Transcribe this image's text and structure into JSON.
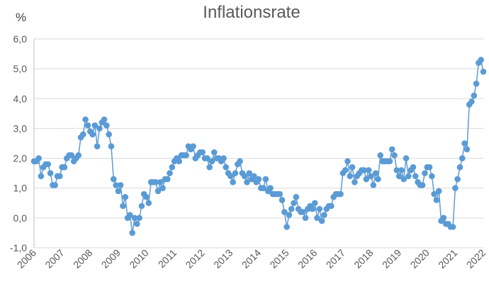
{
  "chart_data": {
    "type": "line",
    "title": "Inflationsrate",
    "unit_label": "%",
    "xlabel": "",
    "ylabel": "",
    "ylim": [
      -1.0,
      6.0
    ],
    "yticks": [
      "6,0",
      "5,0",
      "4,0",
      "3,0",
      "2,0",
      "1,0",
      "0,0",
      "-1,0"
    ],
    "ytick_values": [
      6,
      5,
      4,
      3,
      2,
      1,
      0,
      -1
    ],
    "xlim": [
      2006,
      2022
    ],
    "xticks": [
      "2006",
      "2007",
      "2008",
      "2009",
      "2010",
      "2011",
      "2012",
      "2013",
      "2014",
      "2015",
      "2016",
      "2017",
      "2018",
      "2019",
      "2020",
      "2021",
      "2022"
    ],
    "xtick_values": [
      2006,
      2007,
      2008,
      2009,
      2010,
      2011,
      2012,
      2013,
      2014,
      2015,
      2016,
      2017,
      2018,
      2019,
      2020,
      2021,
      2022
    ],
    "grid": true,
    "markers": true,
    "series": [
      {
        "color": "#5b9bd5",
        "x": [
          2006.0,
          2006.083,
          2006.167,
          2006.25,
          2006.333,
          2006.417,
          2006.5,
          2006.583,
          2006.667,
          2006.75,
          2006.833,
          2006.917,
          2007.0,
          2007.083,
          2007.167,
          2007.25,
          2007.333,
          2007.417,
          2007.5,
          2007.583,
          2007.667,
          2007.75,
          2007.833,
          2007.917,
          2008.0,
          2008.083,
          2008.167,
          2008.25,
          2008.333,
          2008.417,
          2008.5,
          2008.583,
          2008.667,
          2008.75,
          2008.833,
          2008.917,
          2009.0,
          2009.083,
          2009.167,
          2009.25,
          2009.333,
          2009.417,
          2009.5,
          2009.583,
          2009.667,
          2009.75,
          2009.833,
          2009.917,
          2010.0,
          2010.083,
          2010.167,
          2010.25,
          2010.333,
          2010.417,
          2010.5,
          2010.583,
          2010.667,
          2010.75,
          2010.833,
          2010.917,
          2011.0,
          2011.083,
          2011.167,
          2011.25,
          2011.333,
          2011.417,
          2011.5,
          2011.583,
          2011.667,
          2011.75,
          2011.833,
          2011.917,
          2012.0,
          2012.083,
          2012.167,
          2012.25,
          2012.333,
          2012.417,
          2012.5,
          2012.583,
          2012.667,
          2012.75,
          2012.833,
          2012.917,
          2013.0,
          2013.083,
          2013.167,
          2013.25,
          2013.333,
          2013.417,
          2013.5,
          2013.583,
          2013.667,
          2013.75,
          2013.833,
          2013.917,
          2014.0,
          2014.083,
          2014.167,
          2014.25,
          2014.333,
          2014.417,
          2014.5,
          2014.583,
          2014.667,
          2014.75,
          2014.833,
          2014.917,
          2015.0,
          2015.083,
          2015.167,
          2015.25,
          2015.333,
          2015.417,
          2015.5,
          2015.583,
          2015.667,
          2015.75,
          2015.833,
          2015.917,
          2016.0,
          2016.083,
          2016.167,
          2016.25,
          2016.333,
          2016.417,
          2016.5,
          2016.583,
          2016.667,
          2016.75,
          2016.833,
          2016.917,
          2017.0,
          2017.083,
          2017.167,
          2017.25,
          2017.333,
          2017.417,
          2017.5,
          2017.583,
          2017.667,
          2017.75,
          2017.833,
          2017.917,
          2018.0,
          2018.083,
          2018.167,
          2018.25,
          2018.333,
          2018.417,
          2018.5,
          2018.583,
          2018.667,
          2018.75,
          2018.833,
          2018.917,
          2019.0,
          2019.083,
          2019.167,
          2019.25,
          2019.333,
          2019.417,
          2019.5,
          2019.583,
          2019.667,
          2019.75,
          2019.833,
          2019.917,
          2020.0,
          2020.083,
          2020.167,
          2020.25,
          2020.333,
          2020.417,
          2020.5,
          2020.583,
          2020.667,
          2020.75,
          2020.833,
          2020.917,
          2021.0,
          2021.083,
          2021.167,
          2021.25,
          2021.333,
          2021.417,
          2021.5,
          2021.583,
          2021.667,
          2021.75,
          2021.833,
          2021.917,
          2022.0
        ],
        "y": [
          1.9,
          1.9,
          2.0,
          1.4,
          1.7,
          1.8,
          1.8,
          1.5,
          1.1,
          1.1,
          1.4,
          1.4,
          1.7,
          1.7,
          2.0,
          2.1,
          2.1,
          1.9,
          2.0,
          2.1,
          2.7,
          2.8,
          3.3,
          3.1,
          2.9,
          2.8,
          3.1,
          2.4,
          3.0,
          3.2,
          3.3,
          3.1,
          2.8,
          2.4,
          1.3,
          1.1,
          0.9,
          1.1,
          0.4,
          0.7,
          0.0,
          0.1,
          -0.5,
          0.0,
          -0.2,
          0.0,
          0.4,
          0.8,
          0.7,
          0.5,
          1.2,
          1.2,
          1.2,
          0.9,
          1.2,
          1.0,
          1.3,
          1.3,
          1.5,
          1.7,
          1.9,
          2.0,
          1.9,
          2.1,
          2.1,
          2.1,
          2.4,
          2.3,
          2.4,
          2.0,
          2.1,
          2.2,
          2.2,
          2.0,
          2.0,
          1.7,
          1.9,
          2.2,
          2.0,
          2.0,
          1.9,
          2.0,
          1.7,
          1.5,
          1.4,
          1.2,
          1.5,
          1.8,
          1.9,
          1.5,
          1.4,
          1.2,
          1.5,
          1.3,
          1.4,
          1.2,
          1.3,
          1.0,
          1.0,
          1.3,
          0.9,
          1.0,
          0.8,
          0.8,
          0.8,
          0.8,
          0.6,
          0.2,
          -0.3,
          0.1,
          0.3,
          0.5,
          0.7,
          0.3,
          0.2,
          0.2,
          0.0,
          0.3,
          0.4,
          0.3,
          0.5,
          0.0,
          0.3,
          -0.1,
          0.1,
          0.3,
          0.4,
          0.4,
          0.7,
          0.8,
          0.8,
          0.8,
          1.5,
          1.6,
          1.9,
          1.4,
          1.7,
          1.2,
          1.4,
          1.5,
          1.6,
          1.6,
          1.3,
          1.6,
          1.4,
          1.1,
          1.5,
          1.3,
          2.1,
          1.9,
          1.9,
          1.9,
          1.9,
          2.3,
          2.1,
          1.6,
          1.4,
          1.6,
          1.3,
          2.0,
          1.4,
          1.6,
          1.7,
          1.4,
          1.2,
          1.1,
          1.1,
          1.5,
          1.7,
          1.7,
          1.4,
          0.8,
          0.6,
          0.9,
          -0.1,
          0.0,
          -0.2,
          -0.2,
          -0.3,
          -0.3,
          1.0,
          1.3,
          1.7,
          2.0,
          2.5,
          2.3,
          3.8,
          3.9,
          4.1,
          4.5,
          5.2,
          5.3,
          4.9
        ]
      }
    ]
  }
}
